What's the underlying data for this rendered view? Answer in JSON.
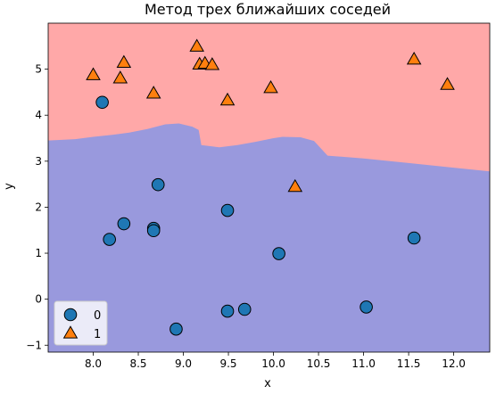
{
  "chart_data": {
    "type": "scatter",
    "title": "Метод трех ближайших соседей",
    "xlabel": "x",
    "ylabel": "y",
    "xlim": [
      7.5,
      12.4
    ],
    "ylim": [
      -1.15,
      6.0
    ],
    "xticks": [
      8.0,
      8.5,
      9.0,
      9.5,
      10.0,
      10.5,
      11.0,
      11.5,
      12.0
    ],
    "xtick_labels": [
      "8.0",
      "8.5",
      "9.0",
      "9.5",
      "10.0",
      "10.5",
      "11.0",
      "11.5",
      "12.0"
    ],
    "yticks": [
      -1,
      0,
      1,
      2,
      3,
      4,
      5
    ],
    "ytick_labels": [
      "−1",
      "0",
      "1",
      "2",
      "3",
      "4",
      "5"
    ],
    "grid": false,
    "legend_position": "bottom-left",
    "decision_regions": {
      "class_0_color": "#9999dd",
      "class_1_color": "#ffa8a8",
      "boundary": [
        [
          7.5,
          3.45
        ],
        [
          7.6,
          3.46
        ],
        [
          7.8,
          3.48
        ],
        [
          8.0,
          3.53
        ],
        [
          8.2,
          3.57
        ],
        [
          8.4,
          3.62
        ],
        [
          8.6,
          3.7
        ],
        [
          8.8,
          3.8
        ],
        [
          8.95,
          3.82
        ],
        [
          9.1,
          3.75
        ],
        [
          9.17,
          3.68
        ],
        [
          9.2,
          3.35
        ],
        [
          9.4,
          3.3
        ],
        [
          9.6,
          3.35
        ],
        [
          9.8,
          3.42
        ],
        [
          10.0,
          3.5
        ],
        [
          10.1,
          3.53
        ],
        [
          10.3,
          3.52
        ],
        [
          10.45,
          3.44
        ],
        [
          10.6,
          3.12
        ],
        [
          11.0,
          3.06
        ],
        [
          11.5,
          2.96
        ],
        [
          12.0,
          2.86
        ],
        [
          12.4,
          2.78
        ]
      ]
    },
    "series": [
      {
        "name": "0",
        "marker": "circle",
        "color": "#1f77b4",
        "points": [
          [
            8.1,
            4.28
          ],
          [
            8.34,
            1.64
          ],
          [
            8.18,
            1.3
          ],
          [
            8.67,
            1.54
          ],
          [
            8.67,
            1.49
          ],
          [
            8.72,
            2.49
          ],
          [
            9.49,
            1.93
          ],
          [
            10.06,
            0.99
          ],
          [
            9.49,
            -0.26
          ],
          [
            9.68,
            -0.22
          ],
          [
            8.92,
            -0.65
          ],
          [
            11.03,
            -0.17
          ],
          [
            11.56,
            1.33
          ]
        ]
      },
      {
        "name": "1",
        "marker": "triangle",
        "color": "#ff7f0e",
        "points": [
          [
            8.0,
            4.87
          ],
          [
            8.3,
            4.8
          ],
          [
            8.34,
            5.14
          ],
          [
            8.67,
            4.47
          ],
          [
            9.15,
            5.49
          ],
          [
            9.18,
            5.1
          ],
          [
            9.24,
            5.12
          ],
          [
            9.32,
            5.09
          ],
          [
            9.49,
            4.32
          ],
          [
            9.97,
            4.59
          ],
          [
            10.24,
            2.44
          ],
          [
            11.56,
            5.21
          ],
          [
            11.93,
            4.66
          ]
        ]
      }
    ]
  }
}
